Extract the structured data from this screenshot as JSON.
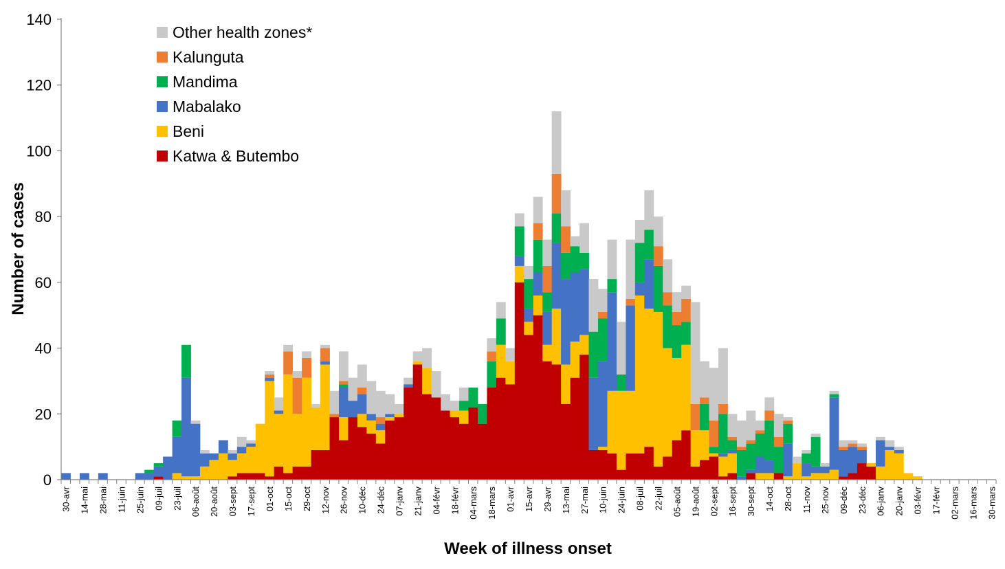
{
  "chart_data": {
    "type": "bar",
    "stacked": true,
    "xlabel": "Week of illness onset",
    "ylabel": "Number of cases",
    "ylim": [
      0,
      140
    ],
    "yticks": [
      0,
      20,
      40,
      60,
      80,
      100,
      120,
      140
    ],
    "grid": false,
    "legend_position": "top-left",
    "bar_width_weeks": 1,
    "x_tick_every": 2,
    "categories": [
      "30-avr",
      "07-mai",
      "14-mai",
      "21-mai",
      "28-mai",
      "04-juin",
      "11-juin",
      "18-juin",
      "25-juin",
      "02-juil",
      "09-juil",
      "16-juil",
      "23-juil",
      "30-juil",
      "06-août",
      "13-août",
      "20-août",
      "27-août",
      "03-sept",
      "10-sept",
      "17-sept",
      "24-sept",
      "01-oct",
      "08-oct",
      "15-oct",
      "22-oct",
      "29-oct",
      "05-nov",
      "12-nov",
      "19-nov",
      "26-nov",
      "03-déc",
      "10-déc",
      "17-déc",
      "24-déc",
      "31-déc",
      "07-janv",
      "14-janv",
      "21-janv",
      "28-janv",
      "04-févr",
      "11-févr",
      "18-févr",
      "25-févr",
      "04-mars",
      "11-mars",
      "18-mars",
      "25-mars",
      "01-avr",
      "08-avr",
      "15-avr",
      "22-avr",
      "29-avr",
      "06-mai",
      "13-mai",
      "20-mai",
      "27-mai",
      "03-juin",
      "10-juin",
      "17-juin",
      "24-juin",
      "01-juil",
      "08-juil",
      "15-juil",
      "22-juil",
      "29-juil",
      "05-août",
      "12-août",
      "19-août",
      "26-août",
      "02-sept",
      "09-sept",
      "16-sept",
      "23-sept",
      "30-sept",
      "07-oct",
      "14-oct",
      "21-oct",
      "28-oct",
      "04-nov",
      "11-nov",
      "18-nov",
      "25-nov",
      "02-déc",
      "09-déc",
      "16-déc",
      "23-déc",
      "30-déc",
      "06-janv",
      "13-janv",
      "20-janv",
      "27-janv",
      "03-févr",
      "10-févr",
      "17-févr",
      "24-févr",
      "02-mars",
      "09-mars",
      "16-mars",
      "23-mars",
      "30-mars"
    ],
    "series": [
      {
        "name": "Katwa & Butembo",
        "color": "#C00000",
        "values": [
          0,
          0,
          0,
          0,
          0,
          0,
          0,
          0,
          0,
          0,
          1,
          0,
          0,
          0,
          0,
          0,
          0,
          0,
          1,
          2,
          2,
          2,
          1,
          4,
          2,
          4,
          4,
          9,
          9,
          19,
          12,
          19,
          16,
          14,
          11,
          18,
          19,
          28,
          35,
          26,
          25,
          21,
          19,
          17,
          22,
          17,
          28,
          31,
          29,
          60,
          44,
          50,
          36,
          35,
          23,
          31,
          38,
          9,
          9,
          8,
          3,
          8,
          8,
          10,
          4,
          7,
          12,
          15,
          4,
          6,
          7,
          1,
          2,
          0,
          2,
          0,
          0,
          2,
          0,
          0,
          0,
          0,
          0,
          0,
          1,
          2,
          5,
          4,
          0,
          0,
          0,
          0,
          0,
          0,
          0,
          0,
          0,
          0,
          0,
          0,
          0
        ]
      },
      {
        "name": "Beni",
        "color": "#FFC000",
        "values": [
          0,
          0,
          0,
          0,
          0,
          0,
          0,
          0,
          0,
          0,
          0,
          0,
          2,
          1,
          1,
          4,
          6,
          8,
          5,
          6,
          8,
          15,
          29,
          16,
          30,
          16,
          27,
          13,
          26,
          0,
          7,
          0,
          4,
          4,
          4,
          1,
          1,
          0,
          1,
          8,
          0,
          0,
          2,
          4,
          0,
          0,
          0,
          10,
          7,
          5,
          4,
          6,
          5,
          17,
          12,
          11,
          6,
          0,
          1,
          19,
          24,
          19,
          48,
          42,
          47,
          33,
          25,
          26,
          11,
          9,
          1,
          6,
          6,
          0,
          0,
          2,
          2,
          0,
          1,
          5,
          1,
          2,
          2,
          3,
          0,
          0,
          0,
          1,
          4,
          9,
          8,
          2,
          1,
          0,
          0,
          0,
          0,
          0,
          0,
          0,
          0
        ]
      },
      {
        "name": "Mabalako",
        "color": "#4472C4",
        "values": [
          2,
          0,
          2,
          0,
          2,
          0,
          0,
          0,
          2,
          2,
          3,
          7,
          11,
          30,
          16,
          4,
          2,
          4,
          2,
          2,
          1,
          0,
          1,
          1,
          0,
          0,
          0,
          0,
          1,
          0,
          9,
          5,
          6,
          2,
          2,
          1,
          0,
          1,
          0,
          0,
          0,
          0,
          0,
          0,
          0,
          0,
          0,
          0,
          0,
          3,
          4,
          7,
          10,
          20,
          26,
          21,
          20,
          22,
          26,
          30,
          0,
          26,
          4,
          15,
          0,
          0,
          0,
          0,
          0,
          0,
          0,
          1,
          1,
          1,
          1,
          5,
          4,
          0,
          10,
          0,
          4,
          2,
          2,
          22,
          8,
          8,
          4,
          0,
          8,
          1,
          1,
          0,
          0,
          0,
          0,
          0,
          0,
          0,
          0,
          0,
          0
        ]
      },
      {
        "name": "Mandima",
        "color": "#00B050",
        "values": [
          0,
          0,
          0,
          0,
          0,
          0,
          0,
          0,
          0,
          1,
          1,
          0,
          5,
          10,
          0,
          0,
          0,
          0,
          0,
          0,
          0,
          0,
          0,
          0,
          0,
          0,
          0,
          0,
          0,
          0,
          1,
          0,
          0,
          0,
          0,
          0,
          0,
          0,
          0,
          0,
          0,
          0,
          0,
          3,
          6,
          6,
          8,
          8,
          0,
          9,
          9,
          10,
          6,
          9,
          8,
          8,
          5,
          14,
          13,
          4,
          5,
          0,
          12,
          9,
          14,
          13,
          10,
          7,
          0,
          8,
          2,
          12,
          3,
          8,
          8,
          7,
          12,
          8,
          6,
          0,
          3,
          9,
          0,
          1,
          0,
          0,
          0,
          0,
          0,
          0,
          0,
          0,
          0,
          0,
          0,
          0,
          0,
          0,
          0,
          0,
          0
        ]
      },
      {
        "name": "Kalunguta",
        "color": "#ED7D31",
        "values": [
          0,
          0,
          0,
          0,
          0,
          0,
          0,
          0,
          0,
          0,
          0,
          0,
          0,
          0,
          0,
          0,
          0,
          0,
          0,
          0,
          0,
          0,
          1,
          0,
          7,
          11,
          6,
          0,
          4,
          1,
          1,
          0,
          2,
          0,
          2,
          0,
          0,
          0,
          0,
          0,
          0,
          0,
          0,
          0,
          0,
          0,
          3,
          0,
          0,
          0,
          0,
          5,
          8,
          12,
          8,
          0,
          0,
          0,
          2,
          0,
          0,
          2,
          0,
          0,
          6,
          4,
          4,
          7,
          8,
          2,
          8,
          3,
          1,
          1,
          1,
          1,
          3,
          3,
          1,
          0,
          0,
          0,
          0,
          0,
          1,
          1,
          1,
          0,
          0,
          0,
          0,
          0,
          0,
          0,
          0,
          0,
          0,
          0,
          0,
          0,
          0
        ]
      },
      {
        "name": "Other health zones*",
        "color": "#C9C9C9",
        "values": [
          0,
          0,
          0,
          0,
          0,
          0,
          0,
          0,
          0,
          0,
          0,
          0,
          0,
          0,
          1,
          1,
          0,
          0,
          1,
          3,
          1,
          0,
          1,
          4,
          2,
          2,
          2,
          1,
          1,
          7,
          9,
          7,
          7,
          10,
          8,
          6,
          3,
          2,
          3,
          6,
          8,
          5,
          3,
          4,
          0,
          0,
          4,
          5,
          4,
          4,
          4,
          8,
          8,
          19,
          11,
          3,
          9,
          16,
          7,
          12,
          16,
          18,
          7,
          12,
          9,
          10,
          6,
          4,
          31,
          11,
          16,
          17,
          7,
          8,
          9,
          3,
          4,
          7,
          1,
          2,
          1,
          1,
          1,
          1,
          2,
          1,
          1,
          0,
          1,
          2,
          1,
          0,
          0,
          0,
          0,
          0,
          0,
          0,
          0,
          0,
          0
        ]
      }
    ]
  }
}
